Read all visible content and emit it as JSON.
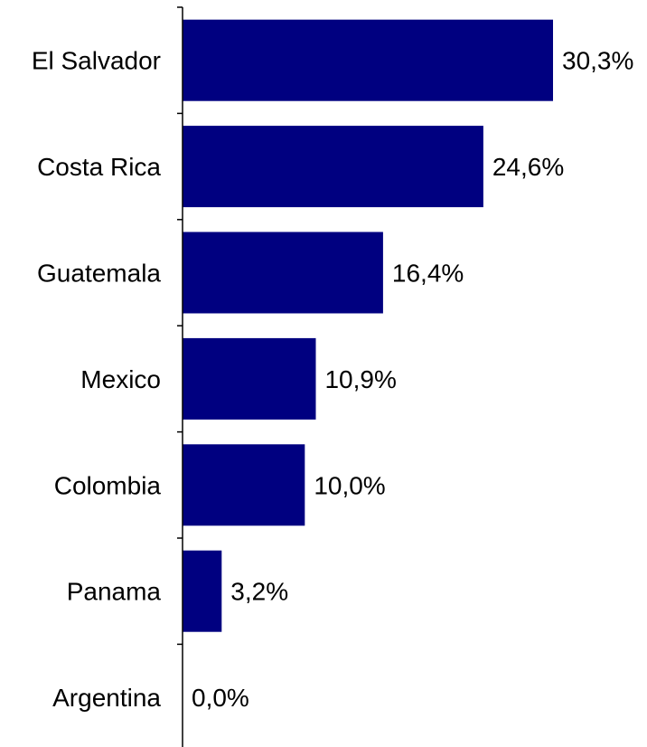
{
  "chart_data": {
    "type": "bar",
    "orientation": "horizontal",
    "categories": [
      "El Salvador",
      "Costa Rica",
      "Guatemala",
      "Mexico",
      "Colombia",
      "Panama",
      "Argentina"
    ],
    "values": [
      30.3,
      24.6,
      16.4,
      10.9,
      10.0,
      3.2,
      0.0
    ],
    "value_labels": [
      "30,3%",
      "24,6%",
      "16,4%",
      "10,9%",
      "10,0%",
      "3,2%",
      "0,0%"
    ],
    "title": "",
    "xlabel": "",
    "ylabel": "",
    "xlim": [
      0,
      30.3
    ],
    "grid": false,
    "legend": "none",
    "colors": {
      "bar": "#000080",
      "axis": "#000000",
      "text": "#000000"
    }
  }
}
